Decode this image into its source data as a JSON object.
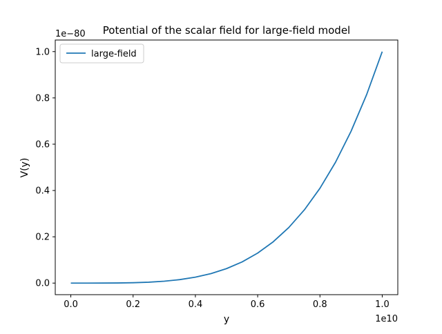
{
  "chart_data": {
    "type": "line",
    "title": "Potential of the scalar field for large-field model",
    "xlabel": "y",
    "ylabel": "V(y)",
    "x_offset_label": "1e10",
    "y_offset_label": "1e−80",
    "xlim": [
      -0.05,
      1.05
    ],
    "ylim": [
      -0.05,
      1.05
    ],
    "x_ticks": [
      0.0,
      0.2,
      0.4,
      0.6,
      0.8,
      1.0
    ],
    "x_tick_labels": [
      "0.0",
      "0.2",
      "0.4",
      "0.6",
      "0.8",
      "1.0"
    ],
    "y_ticks": [
      0.0,
      0.2,
      0.4,
      0.6,
      0.8,
      1.0
    ],
    "y_tick_labels": [
      "0.0",
      "0.2",
      "0.4",
      "0.6",
      "0.8",
      "1.0"
    ],
    "grid": false,
    "legend_position": "upper-left",
    "series": [
      {
        "name": "large-field",
        "color": "#1f77b4",
        "x": [
          0.0,
          0.05,
          0.1,
          0.15,
          0.2,
          0.25,
          0.3,
          0.35,
          0.4,
          0.45,
          0.5,
          0.55,
          0.6,
          0.65,
          0.7,
          0.75,
          0.8,
          0.85,
          0.9,
          0.95,
          1.0
        ],
        "y": [
          0.0,
          0.0,
          0.0001,
          0.0005,
          0.0016,
          0.0039,
          0.0081,
          0.015,
          0.0256,
          0.041,
          0.0625,
          0.0915,
          0.1296,
          0.1785,
          0.2401,
          0.3164,
          0.4096,
          0.522,
          0.6561,
          0.8145,
          1.0
        ]
      }
    ]
  }
}
